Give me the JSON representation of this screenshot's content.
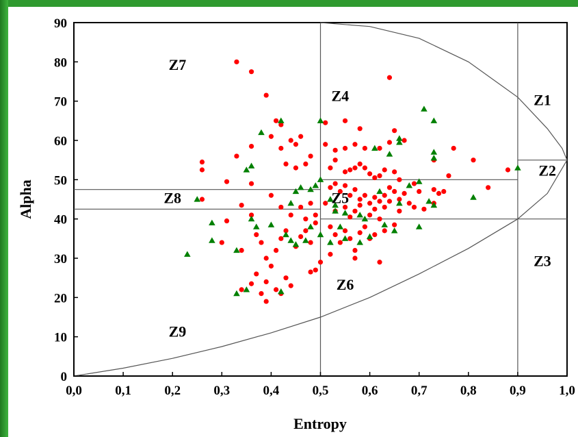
{
  "colors": {
    "frame": "#2f9a2f",
    "red_points": "#ff0000",
    "green_points": "#008000",
    "grid_lines": "#555555"
  },
  "chart_data": {
    "type": "scatter",
    "xlabel": "Entropy",
    "ylabel": "Alpha",
    "xlim": [
      0,
      1
    ],
    "ylim": [
      0,
      90
    ],
    "x_ticks": [
      "0,0",
      "0,1",
      "0,2",
      "0,3",
      "0,4",
      "0,5",
      "0,6",
      "0,7",
      "0,8",
      "0,9",
      "1,0"
    ],
    "y_ticks": [
      "0",
      "10",
      "20",
      "30",
      "40",
      "50",
      "60",
      "70",
      "80",
      "90"
    ],
    "grid": false,
    "legend": "none",
    "zone_labels": [
      {
        "label": "Z1",
        "x": 0.95,
        "y": 69
      },
      {
        "label": "Z2",
        "x": 0.96,
        "y": 51
      },
      {
        "label": "Z3",
        "x": 0.95,
        "y": 28
      },
      {
        "label": "Z4",
        "x": 0.54,
        "y": 70
      },
      {
        "label": "Z5",
        "x": 0.54,
        "y": 44
      },
      {
        "label": "Z6",
        "x": 0.55,
        "y": 22
      },
      {
        "label": "Z7",
        "x": 0.21,
        "y": 78
      },
      {
        "label": "Z8",
        "x": 0.2,
        "y": 44
      },
      {
        "label": "Z9",
        "x": 0.21,
        "y": 10
      }
    ],
    "boundaries": {
      "vertical_lines": [
        0.5,
        0.9
      ],
      "horizontal_segments": [
        {
          "y": 47.5,
          "x0": 0.0,
          "x1": 0.5
        },
        {
          "y": 42.5,
          "x0": 0.0,
          "x1": 0.5
        },
        {
          "y": 50.0,
          "x0": 0.5,
          "x1": 0.9
        },
        {
          "y": 40.0,
          "x0": 0.5,
          "x1": 1.0
        },
        {
          "y": 55.0,
          "x0": 0.9,
          "x1": 1.0
        }
      ],
      "curves": [
        "upper alpha limit",
        "lower alpha limit"
      ]
    },
    "series": [
      {
        "color": "#ff0000",
        "marker": "circle",
        "points": [
          [
            0.33,
            80
          ],
          [
            0.36,
            77.5
          ],
          [
            0.39,
            71.5
          ],
          [
            0.64,
            76
          ],
          [
            0.41,
            65
          ],
          [
            0.42,
            64
          ],
          [
            0.4,
            61
          ],
          [
            0.42,
            58
          ],
          [
            0.44,
            60
          ],
          [
            0.46,
            61
          ],
          [
            0.45,
            59
          ],
          [
            0.48,
            56
          ],
          [
            0.47,
            54
          ],
          [
            0.51,
            64.5
          ],
          [
            0.55,
            65
          ],
          [
            0.58,
            63
          ],
          [
            0.65,
            62.5
          ],
          [
            0.33,
            56
          ],
          [
            0.36,
            58.5
          ],
          [
            0.26,
            54.5
          ],
          [
            0.26,
            52.5
          ],
          [
            0.31,
            49.5
          ],
          [
            0.36,
            49
          ],
          [
            0.43,
            54
          ],
          [
            0.45,
            53
          ],
          [
            0.51,
            59
          ],
          [
            0.53,
            57.5
          ],
          [
            0.55,
            58
          ],
          [
            0.57,
            59
          ],
          [
            0.59,
            58
          ],
          [
            0.62,
            58
          ],
          [
            0.64,
            59.5
          ],
          [
            0.67,
            60
          ],
          [
            0.73,
            55
          ],
          [
            0.77,
            58
          ],
          [
            0.81,
            55
          ],
          [
            0.88,
            52.5
          ],
          [
            0.52,
            53
          ],
          [
            0.53,
            55
          ],
          [
            0.55,
            52
          ],
          [
            0.56,
            52.5
          ],
          [
            0.57,
            53
          ],
          [
            0.58,
            54
          ],
          [
            0.59,
            53
          ],
          [
            0.6,
            51.5
          ],
          [
            0.61,
            50.5
          ],
          [
            0.62,
            51
          ],
          [
            0.63,
            52.5
          ],
          [
            0.65,
            52
          ],
          [
            0.66,
            50
          ],
          [
            0.52,
            48
          ],
          [
            0.53,
            49
          ],
          [
            0.54,
            47
          ],
          [
            0.55,
            48.5
          ],
          [
            0.56,
            46
          ],
          [
            0.57,
            47.5
          ],
          [
            0.58,
            45
          ],
          [
            0.59,
            46
          ],
          [
            0.6,
            44
          ],
          [
            0.61,
            45.5
          ],
          [
            0.62,
            44.5
          ],
          [
            0.63,
            46
          ],
          [
            0.64,
            48
          ],
          [
            0.65,
            47
          ],
          [
            0.66,
            45
          ],
          [
            0.67,
            46.5
          ],
          [
            0.68,
            44
          ],
          [
            0.69,
            49
          ],
          [
            0.7,
            47
          ],
          [
            0.73,
            47.5
          ],
          [
            0.74,
            46.5
          ],
          [
            0.75,
            47
          ],
          [
            0.76,
            51
          ],
          [
            0.84,
            48
          ],
          [
            0.51,
            44
          ],
          [
            0.53,
            42
          ],
          [
            0.55,
            43
          ],
          [
            0.56,
            40.5
          ],
          [
            0.57,
            42
          ],
          [
            0.58,
            43.5
          ],
          [
            0.6,
            41
          ],
          [
            0.61,
            42.5
          ],
          [
            0.62,
            40
          ],
          [
            0.63,
            43
          ],
          [
            0.64,
            44.5
          ],
          [
            0.66,
            42
          ],
          [
            0.69,
            43
          ],
          [
            0.71,
            42.5
          ],
          [
            0.73,
            44
          ],
          [
            0.26,
            45
          ],
          [
            0.31,
            39.5
          ],
          [
            0.34,
            43.5
          ],
          [
            0.36,
            41
          ],
          [
            0.4,
            46
          ],
          [
            0.42,
            43
          ],
          [
            0.44,
            41
          ],
          [
            0.46,
            43
          ],
          [
            0.47,
            40
          ],
          [
            0.48,
            44
          ],
          [
            0.49,
            41
          ],
          [
            0.3,
            34
          ],
          [
            0.34,
            32
          ],
          [
            0.37,
            36
          ],
          [
            0.38,
            34
          ],
          [
            0.39,
            30
          ],
          [
            0.41,
            32
          ],
          [
            0.42,
            35
          ],
          [
            0.43,
            37
          ],
          [
            0.45,
            33
          ],
          [
            0.46,
            35.5
          ],
          [
            0.47,
            37
          ],
          [
            0.48,
            34
          ],
          [
            0.49,
            39
          ],
          [
            0.52,
            38
          ],
          [
            0.53,
            36
          ],
          [
            0.54,
            34
          ],
          [
            0.55,
            37
          ],
          [
            0.56,
            35
          ],
          [
            0.57,
            32
          ],
          [
            0.57,
            30
          ],
          [
            0.58,
            36.5
          ],
          [
            0.59,
            38
          ],
          [
            0.6,
            35
          ],
          [
            0.61,
            36
          ],
          [
            0.62,
            29
          ],
          [
            0.63,
            37
          ],
          [
            0.65,
            38.5
          ],
          [
            0.34,
            22
          ],
          [
            0.36,
            23.5
          ],
          [
            0.37,
            26
          ],
          [
            0.38,
            21
          ],
          [
            0.39,
            24
          ],
          [
            0.4,
            28
          ],
          [
            0.41,
            22
          ],
          [
            0.42,
            21
          ],
          [
            0.43,
            25
          ],
          [
            0.44,
            23
          ],
          [
            0.48,
            26.5
          ],
          [
            0.49,
            27
          ],
          [
            0.39,
            19
          ],
          [
            0.5,
            29
          ],
          [
            0.52,
            31
          ]
        ]
      },
      {
        "color": "#008000",
        "marker": "triangle",
        "points": [
          [
            0.71,
            68
          ],
          [
            0.73,
            65
          ],
          [
            0.66,
            60.5
          ],
          [
            0.66,
            59.5
          ],
          [
            0.61,
            58
          ],
          [
            0.64,
            56.5
          ],
          [
            0.73,
            57
          ],
          [
            0.73,
            55.5
          ],
          [
            0.9,
            53
          ],
          [
            0.5,
            65
          ],
          [
            0.42,
            65
          ],
          [
            0.38,
            62
          ],
          [
            0.36,
            53.5
          ],
          [
            0.35,
            52.5
          ],
          [
            0.5,
            50
          ],
          [
            0.49,
            48.5
          ],
          [
            0.48,
            47.5
          ],
          [
            0.46,
            48
          ],
          [
            0.45,
            47
          ],
          [
            0.44,
            44
          ],
          [
            0.52,
            45
          ],
          [
            0.53,
            42
          ],
          [
            0.55,
            41.5
          ],
          [
            0.58,
            41
          ],
          [
            0.62,
            47
          ],
          [
            0.66,
            44
          ],
          [
            0.68,
            48.5
          ],
          [
            0.7,
            49.5
          ],
          [
            0.72,
            44.5
          ],
          [
            0.73,
            43.5
          ],
          [
            0.81,
            45.5
          ],
          [
            0.25,
            45
          ],
          [
            0.28,
            39
          ],
          [
            0.36,
            40
          ],
          [
            0.37,
            38
          ],
          [
            0.4,
            38.5
          ],
          [
            0.43,
            36
          ],
          [
            0.44,
            34.5
          ],
          [
            0.45,
            33.5
          ],
          [
            0.47,
            34.5
          ],
          [
            0.48,
            38
          ],
          [
            0.5,
            36
          ],
          [
            0.52,
            34
          ],
          [
            0.54,
            38
          ],
          [
            0.55,
            35
          ],
          [
            0.58,
            34
          ],
          [
            0.6,
            35.5
          ],
          [
            0.63,
            38.5
          ],
          [
            0.65,
            37
          ],
          [
            0.7,
            38
          ],
          [
            0.23,
            31
          ],
          [
            0.28,
            34.5
          ],
          [
            0.33,
            32
          ],
          [
            0.33,
            21
          ],
          [
            0.35,
            22
          ],
          [
            0.42,
            21.5
          ],
          [
            0.53,
            43.5
          ],
          [
            0.59,
            40
          ]
        ]
      }
    ]
  }
}
